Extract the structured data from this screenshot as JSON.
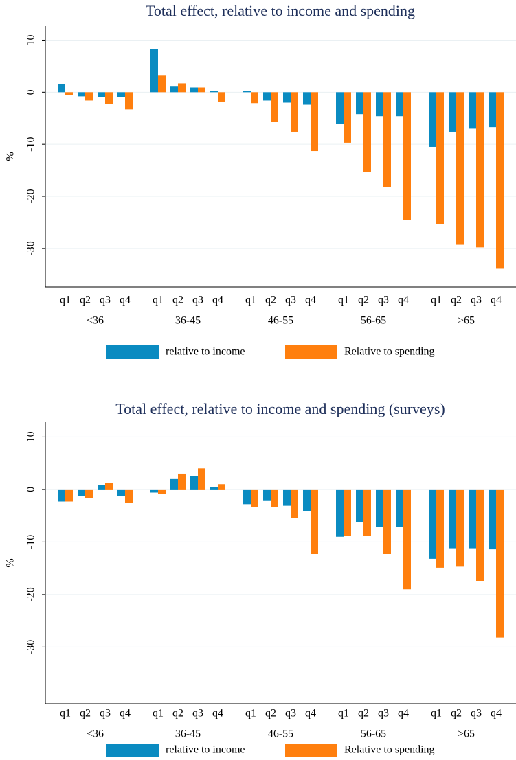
{
  "chart_data": [
    {
      "type": "bar",
      "title": "Total effect, relative to income and spending",
      "ylabel": "%",
      "categories": [
        "q1",
        "q2",
        "q3",
        "q4",
        "q1",
        "q2",
        "q3",
        "q4",
        "q1",
        "q2",
        "q3",
        "q4",
        "q1",
        "q2",
        "q3",
        "q4",
        "q1",
        "q2",
        "q3",
        "q4"
      ],
      "groups": [
        "<36",
        "36-45",
        "46-55",
        "56-65",
        ">65"
      ],
      "series": [
        {
          "name": "relative to income",
          "color": "#0a8bc1",
          "values": [
            1.6,
            -0.8,
            -0.9,
            -0.9,
            8.3,
            1.2,
            0.9,
            0.2,
            0.3,
            -1.6,
            -2.0,
            -2.4,
            -6.1,
            -4.2,
            -4.6,
            -4.6,
            -10.5,
            -7.6,
            -7.0,
            -6.7
          ]
        },
        {
          "name": "Relative to spending",
          "color": "#ff7f0e",
          "values": [
            -0.5,
            -1.6,
            -2.3,
            -3.3,
            3.3,
            1.7,
            0.9,
            -1.8,
            -2.1,
            -5.7,
            -7.6,
            -11.3,
            -9.7,
            -15.3,
            -18.2,
            -24.5,
            -25.3,
            -29.3,
            -29.8,
            -33.9
          ]
        }
      ],
      "ylim": [
        -37.4,
        12.7
      ],
      "yticks": [
        10,
        0,
        -10,
        -20,
        -30
      ],
      "grid": true,
      "legend": "bottom"
    },
    {
      "type": "bar",
      "title": "Total effect, relative to income and spending (surveys)",
      "ylabel": "%",
      "categories": [
        "q1",
        "q2",
        "q3",
        "q4",
        "q1",
        "q2",
        "q3",
        "q4",
        "q1",
        "q2",
        "q3",
        "q4",
        "q1",
        "q2",
        "q3",
        "q4",
        "q1",
        "q2",
        "q3",
        "q4"
      ],
      "groups": [
        "<36",
        "36-45",
        "46-55",
        "56-65",
        ">65"
      ],
      "series": [
        {
          "name": "relative to income",
          "color": "#0a8bc1",
          "values": [
            -2.3,
            -1.3,
            0.8,
            -1.3,
            -0.6,
            2.1,
            2.6,
            0.4,
            -2.8,
            -2.2,
            -3.1,
            -4.1,
            -9.0,
            -6.2,
            -7.1,
            -7.1,
            -13.2,
            -11.2,
            -11.2,
            -11.4
          ]
        },
        {
          "name": "Relative to spending",
          "color": "#ff7f0e",
          "values": [
            -2.3,
            -1.6,
            1.2,
            -2.5,
            -0.8,
            3.0,
            4.0,
            1.0,
            -3.4,
            -3.3,
            -5.5,
            -12.3,
            -8.9,
            -8.8,
            -12.3,
            -19.0,
            -14.9,
            -14.7,
            -17.5,
            -28.2
          ]
        }
      ],
      "ylim": [
        -40.8,
        12.8
      ],
      "yticks": [
        10,
        0,
        -10,
        -20,
        -30
      ],
      "grid": true,
      "legend": "bottom"
    }
  ]
}
